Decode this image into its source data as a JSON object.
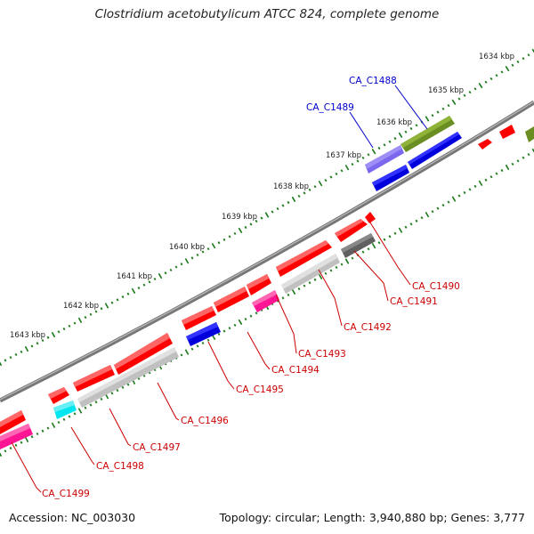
{
  "title": "Clostridium acetobutylicum ATCC 824, complete genome",
  "footer": {
    "accession": "Accession: NC_003030",
    "summary": "Topology: circular; Length: 3,940,880 bp; Genes: 3,777"
  },
  "scale_labels": [
    "1634 kbp",
    "1635 kbp",
    "1636 kbp",
    "1637 kbp",
    "1638 kbp",
    "1639 kbp",
    "1640 kbp",
    "1641 kbp",
    "1642 kbp",
    "1643 kbp"
  ],
  "gene_labels": [
    {
      "text": "CA_C1488",
      "color": "#0000cc"
    },
    {
      "text": "CA_C1489",
      "color": "#0000cc"
    },
    {
      "text": "CA_C1490",
      "color": "#cc0000"
    },
    {
      "text": "CA_C1491",
      "color": "#cc0000"
    },
    {
      "text": "CA_C1492",
      "color": "#cc0000"
    },
    {
      "text": "CA_C1493",
      "color": "#cc0000"
    },
    {
      "text": "CA_C1494",
      "color": "#cc0000"
    },
    {
      "text": "CA_C1495",
      "color": "#cc0000"
    },
    {
      "text": "CA_C1496",
      "color": "#cc0000"
    },
    {
      "text": "CA_C1497",
      "color": "#cc0000"
    },
    {
      "text": "CA_C1498",
      "color": "#cc0000"
    },
    {
      "text": "CA_C1499",
      "color": "#cc0000"
    }
  ],
  "colors": {
    "red": "#ff0000",
    "blue": "#0000dd",
    "gray": "#c0c0c0",
    "dark_gray": "#606060",
    "olive": "#6b8e23",
    "purple": "#7b68ee",
    "cyan": "#00e5ee",
    "pink": "#ff1493",
    "tick": "#1a7a1a",
    "backbone": "#888888"
  }
}
